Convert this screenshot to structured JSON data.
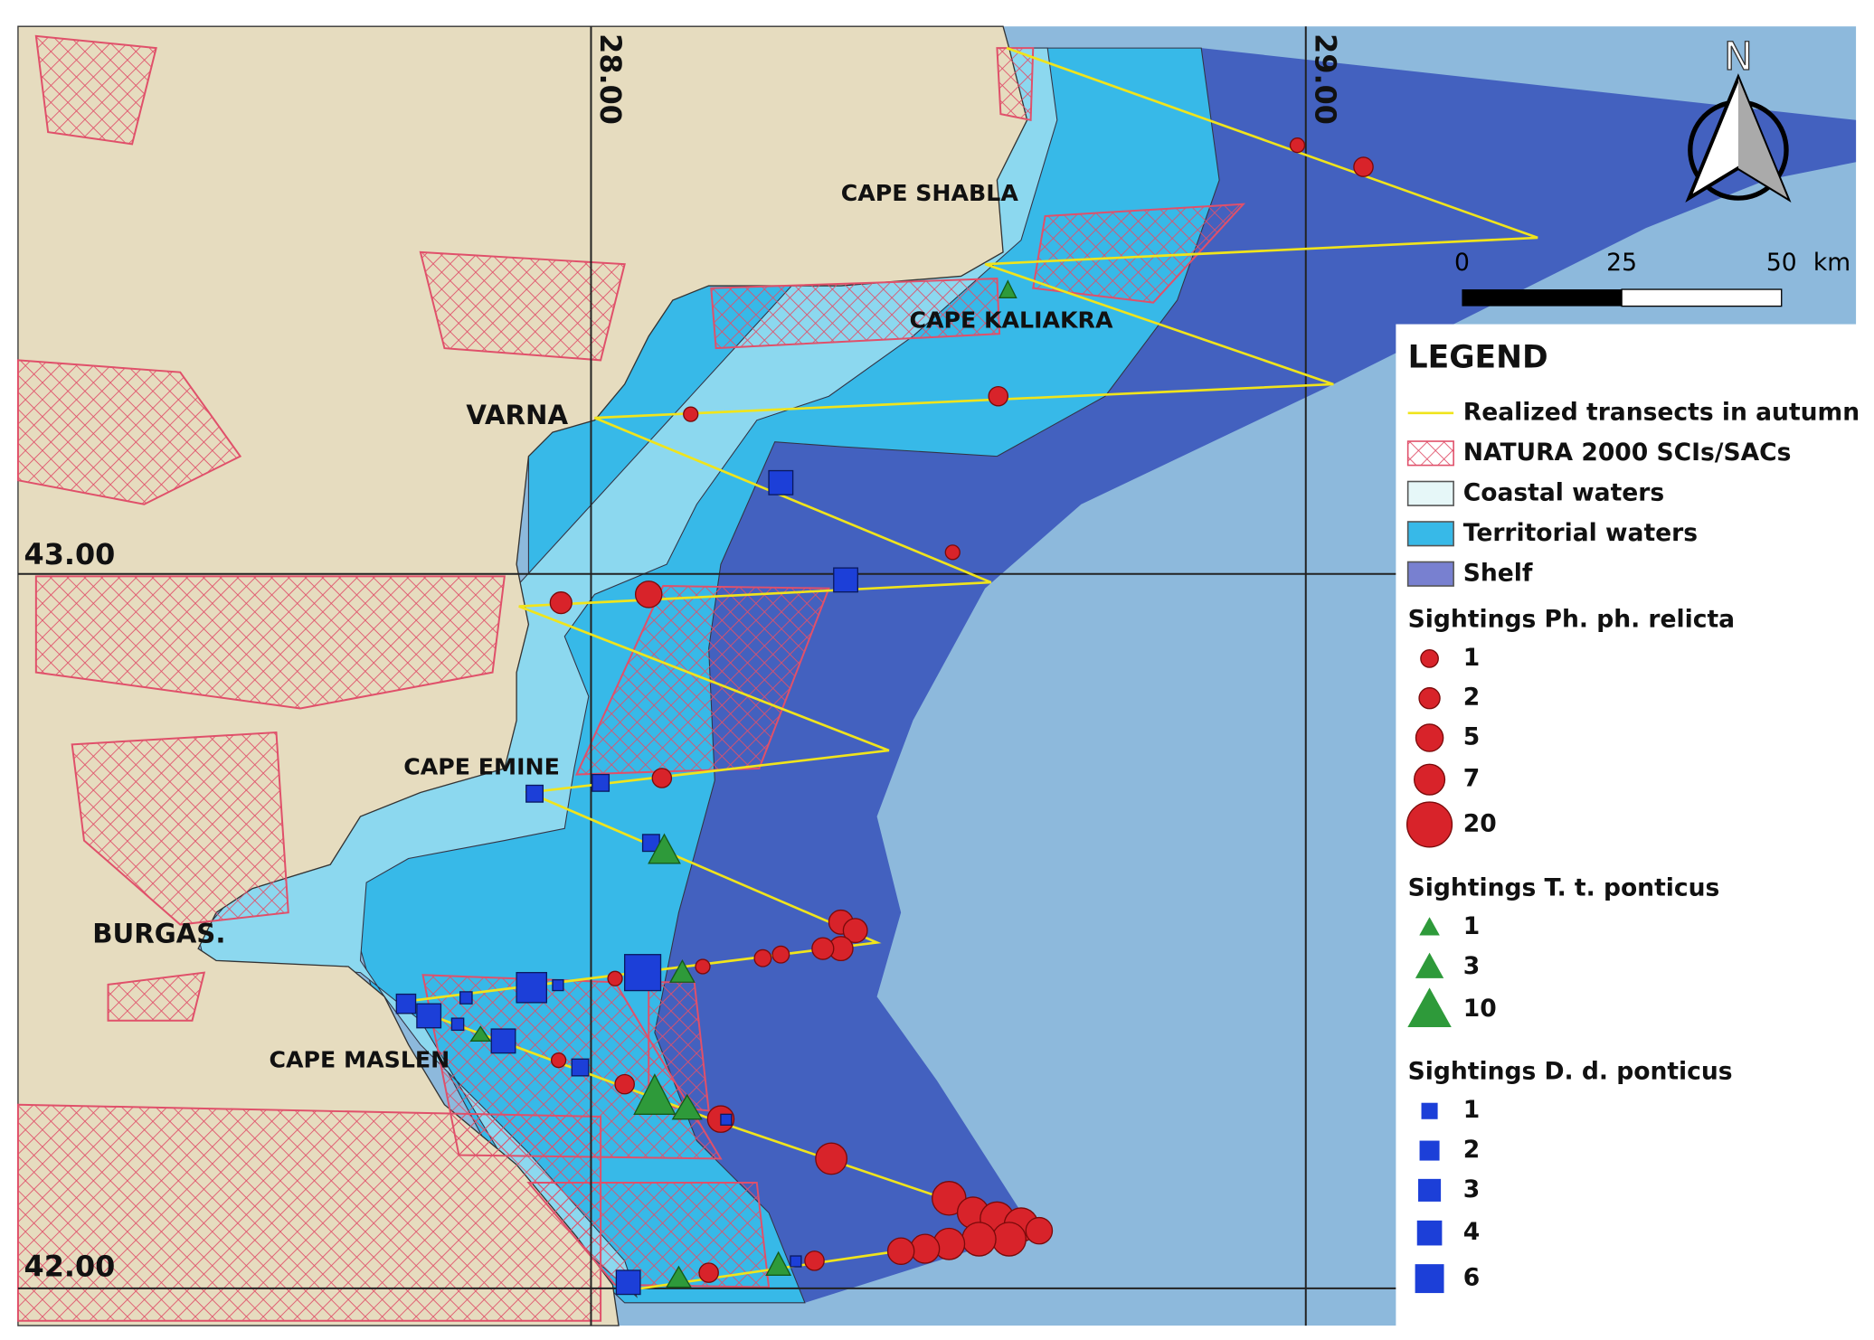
{
  "map_labels": [
    "CAPE SHABLA",
    "CAPE KALIAKRA",
    "VARNA",
    "CAPE EMINE",
    "BURGAS.",
    "CAPE MASLEN"
  ],
  "grid_labels": {
    "lon": [
      "28.00",
      "29.00"
    ],
    "lat": [
      "43.00",
      "42.00"
    ]
  },
  "north": "N",
  "scale_bar": {
    "ticks": [
      "0",
      "25",
      "50"
    ],
    "unit": "km"
  },
  "legend": {
    "title": "LEGEND",
    "layers": [
      {
        "label": "Realized transects in autumn",
        "swatch": "line",
        "color": "#f0e41c"
      },
      {
        "label": "NATURA 2000 SCIs/SACs",
        "swatch": "hatch",
        "color": "#e0506a"
      },
      {
        "label": "Coastal waters",
        "swatch": "fill",
        "color": "#e6f7f8"
      },
      {
        "label": "Territorial waters",
        "swatch": "fill",
        "color": "#37b9e8"
      },
      {
        "label": "Shelf",
        "swatch": "fill",
        "color": "#7880d0"
      }
    ],
    "sightings": [
      {
        "title": "Sightings Ph. ph. relicta",
        "symbol": "circle",
        "color": "#d8232a",
        "sizes": [
          1,
          2,
          5,
          7,
          20
        ]
      },
      {
        "title": "Sightings T. t. ponticus",
        "symbol": "triangle",
        "color": "#2e9a3a",
        "sizes": [
          1,
          3,
          10
        ]
      },
      {
        "title": "Sightings D. d. ponticus",
        "symbol": "square",
        "color": "#1c3fd8",
        "sizes": [
          1,
          2,
          3,
          4,
          6
        ]
      }
    ]
  }
}
